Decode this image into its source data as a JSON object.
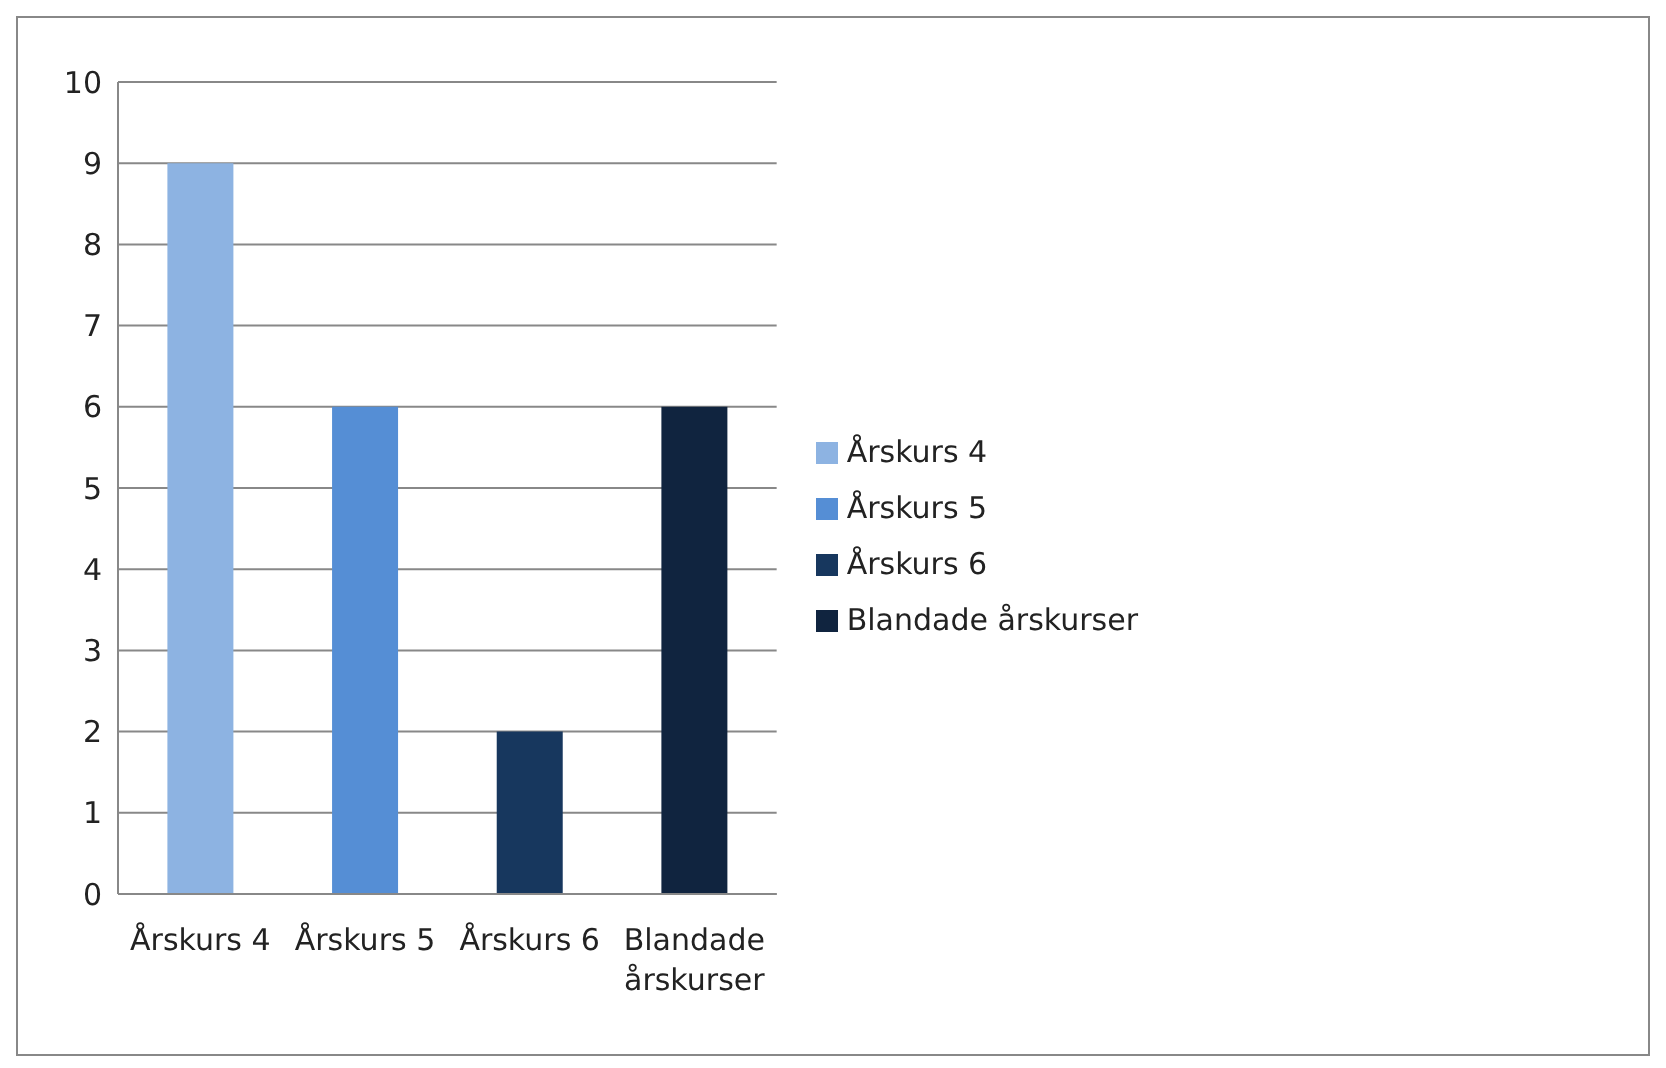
{
  "chart_data": {
    "type": "bar",
    "categories": [
      "Årskurs 4",
      "Årskurs 5",
      "Årskurs 6",
      "Blandade årskurser"
    ],
    "stacked": true,
    "series": [
      {
        "name": "Årskurs 4",
        "color": "#8db3e2",
        "values": [
          9,
          null,
          null,
          null
        ]
      },
      {
        "name": "Årskurs 5",
        "color": "#558ed5",
        "values": [
          null,
          6,
          null,
          null
        ]
      },
      {
        "name": "Årskurs 6",
        "color": "#17375e",
        "values": [
          null,
          null,
          2,
          null
        ]
      },
      {
        "name": "Blandade årskurser",
        "color": "#10243f",
        "values": [
          null,
          null,
          null,
          6
        ]
      }
    ],
    "ylim": [
      0,
      10
    ],
    "yticks": [
      0,
      1,
      2,
      3,
      4,
      5,
      6,
      7,
      8,
      9,
      10
    ],
    "grid": "y",
    "legend": "right"
  }
}
